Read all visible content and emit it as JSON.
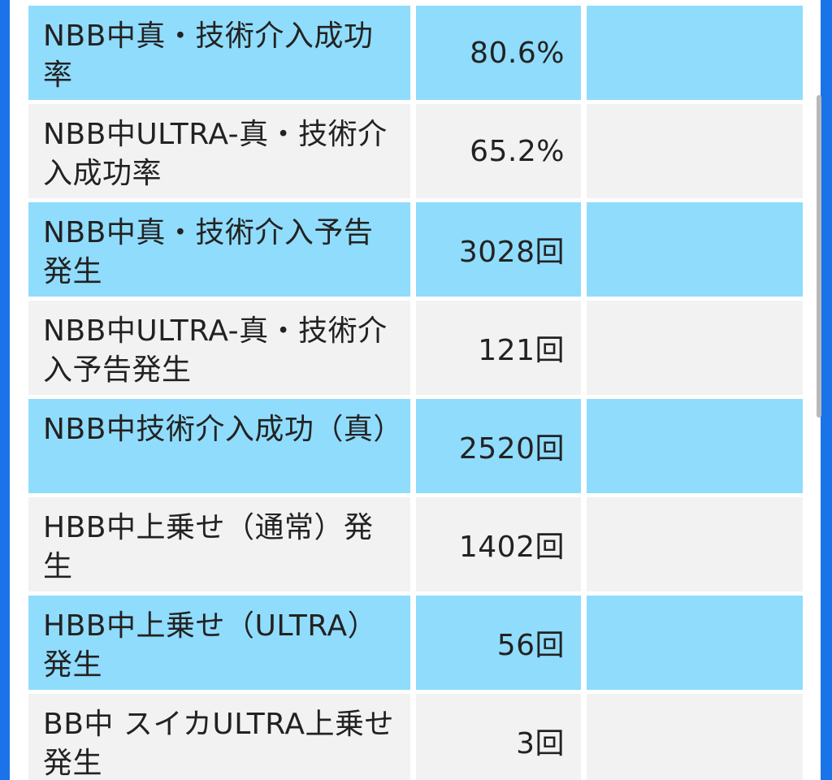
{
  "colors": {
    "edge": "#1a73e8",
    "row_blue": "#90dcfc",
    "row_gray": "#f2f2f2",
    "text": "#222222",
    "scrollbar": "#b8b8b8"
  },
  "table": {
    "rows": [
      {
        "label": "NBB中真・技術介入成功率",
        "value": "80.6%",
        "extra": ""
      },
      {
        "label": "NBB中ULTRA-真・技術介入成功率",
        "value": "65.2%",
        "extra": ""
      },
      {
        "label": "NBB中真・技術介入予告発生",
        "value": "3028回",
        "extra": ""
      },
      {
        "label": "NBB中ULTRA-真・技術介入予告発生",
        "value": "121回",
        "extra": ""
      },
      {
        "label": "NBB中技術介入成功（真）",
        "value": "2520回",
        "extra": ""
      },
      {
        "label": "HBB中上乗せ（通常）発生",
        "value": "1402回",
        "extra": ""
      },
      {
        "label": "HBB中上乗せ（ULTRA）発生",
        "value": "56回",
        "extra": ""
      },
      {
        "label": "BB中 スイカULTRA上乗せ発生",
        "value": "3回",
        "extra": ""
      }
    ]
  }
}
